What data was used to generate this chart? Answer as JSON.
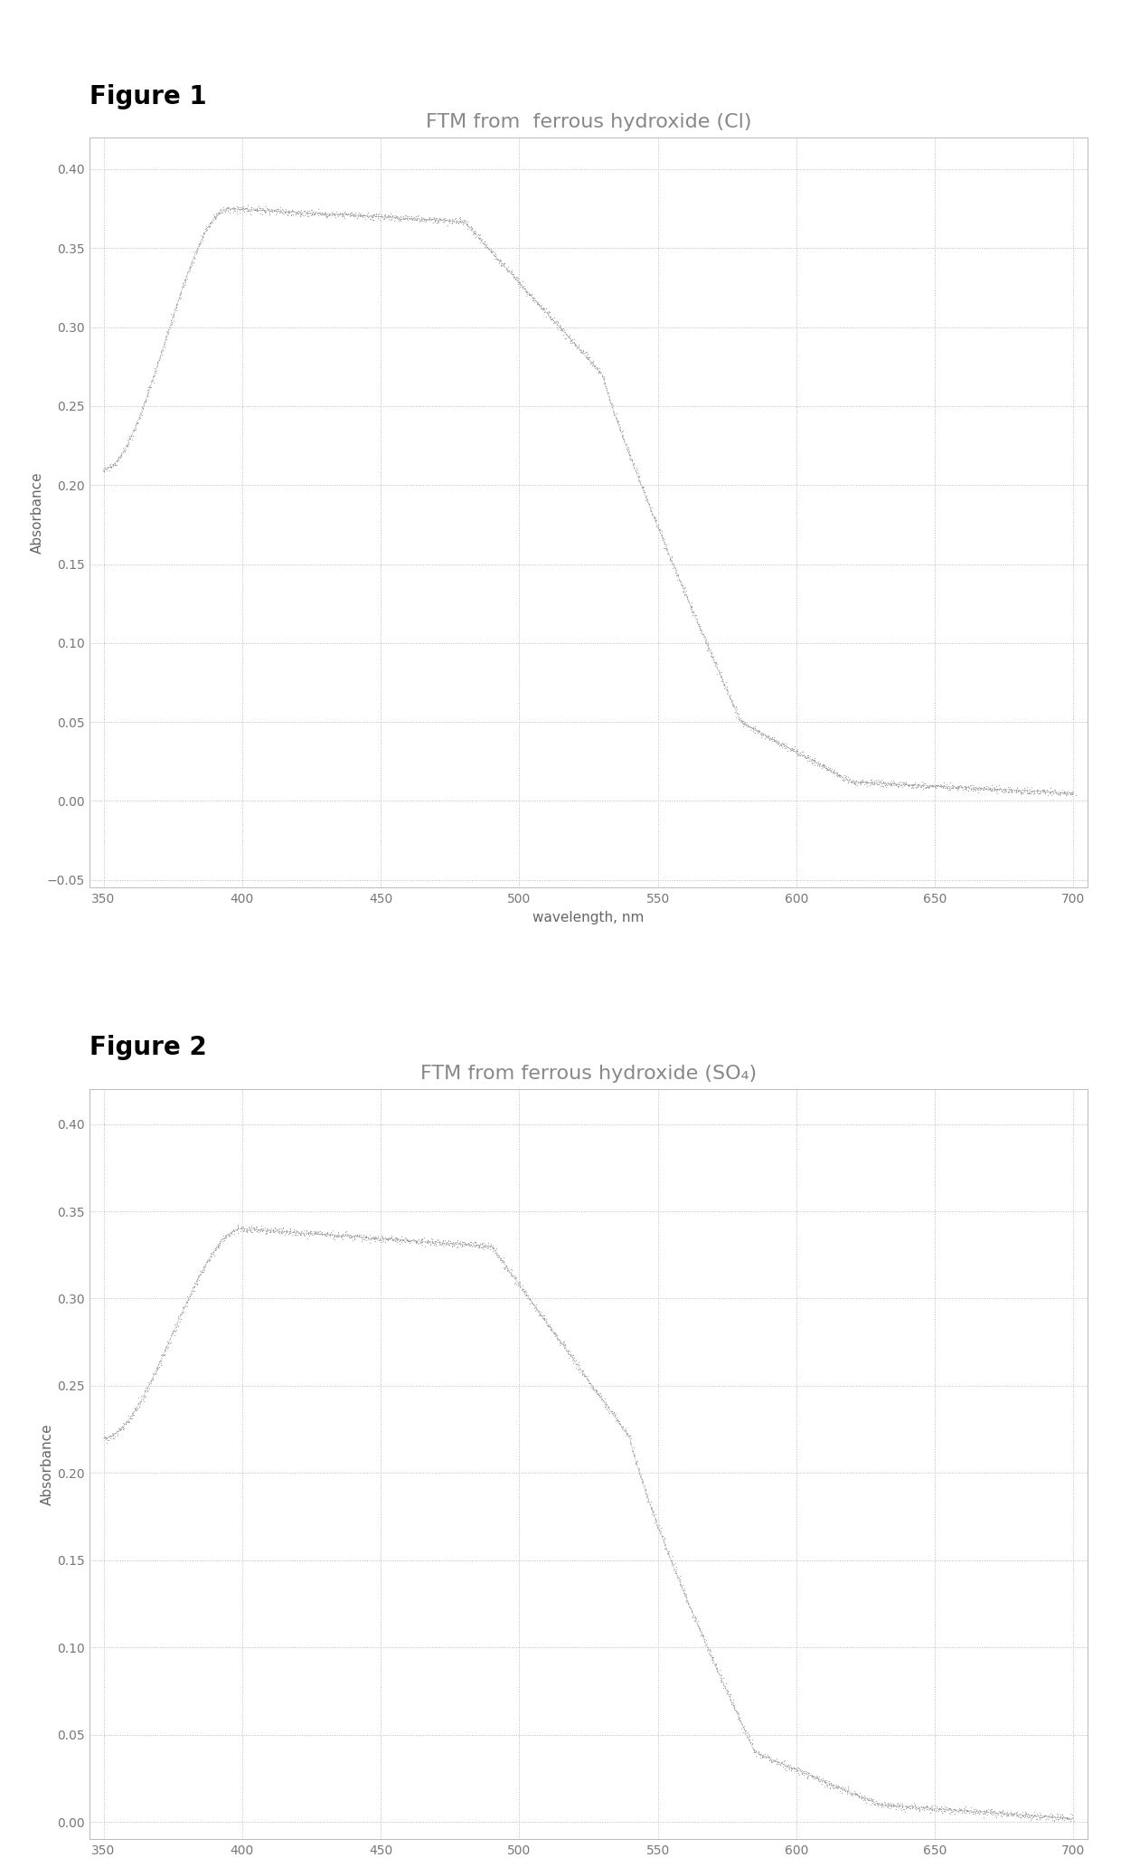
{
  "fig1_title": "FTM from  ferrous hydroxide (Cl)",
  "fig2_title": "FTM from ferrous hydroxide (SO₄)",
  "xlabel": "wavelength, nm",
  "ylabel": "Absorbance",
  "xlim": [
    345,
    705
  ],
  "ylim1": [
    -0.055,
    0.42
  ],
  "ylim2": [
    -0.01,
    0.42
  ],
  "xticks": [
    350,
    400,
    450,
    500,
    550,
    600,
    650,
    700
  ],
  "yticks1": [
    -0.05,
    0,
    0.05,
    0.1,
    0.15,
    0.2,
    0.25,
    0.3,
    0.35,
    0.4
  ],
  "yticks2": [
    0,
    0.05,
    0.1,
    0.15,
    0.2,
    0.25,
    0.3,
    0.35,
    0.4
  ],
  "line_color": "#999999",
  "grid_color": "#bbbbbb",
  "background_color": "#ffffff",
  "figure_label_fontsize": 20,
  "title_fontsize": 16,
  "axis_label_fontsize": 11,
  "tick_fontsize": 10,
  "figure1_label": "Figure 1",
  "figure2_label": "Figure 2",
  "box_color": "#bbbbbb"
}
